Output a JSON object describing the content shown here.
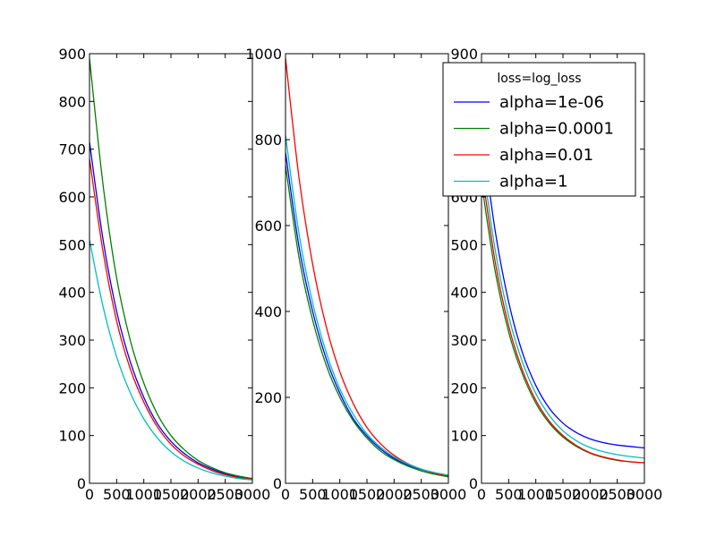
{
  "figure": {
    "background": "#ffffff"
  },
  "chart_data": [
    {
      "type": "line",
      "title": "",
      "xlabel": "",
      "ylabel": "",
      "xlim": [
        0,
        3000
      ],
      "ylim": [
        0,
        900
      ],
      "xticks": [
        "0",
        "500",
        "1000",
        "1500",
        "2000",
        "2500",
        "3000"
      ],
      "yticks": [
        "0",
        "100",
        "200",
        "300",
        "400",
        "500",
        "600",
        "700",
        "800",
        "900"
      ],
      "xtick_values": [
        0,
        500,
        1000,
        1500,
        2000,
        2500,
        3000
      ],
      "ytick_values": [
        0,
        100,
        200,
        300,
        400,
        500,
        600,
        700,
        800,
        900
      ],
      "grid": false,
      "series": [
        {
          "name": "alpha=1e-06",
          "color": "#0000ff",
          "x": [
            0,
            250,
            500,
            750,
            1000,
            1250,
            1500,
            1750,
            2000,
            2250,
            2500,
            2750,
            3000
          ],
          "y": [
            715,
            510,
            360,
            255,
            180,
            125,
            88,
            62,
            43,
            30,
            20,
            13,
            8
          ]
        },
        {
          "name": "alpha=0.0001",
          "color": "#008000",
          "x": [
            0,
            250,
            500,
            750,
            1000,
            1250,
            1500,
            1750,
            2000,
            2250,
            2500,
            2750,
            3000
          ],
          "y": [
            890,
            625,
            430,
            300,
            210,
            145,
            100,
            70,
            48,
            33,
            22,
            15,
            10
          ]
        },
        {
          "name": "alpha=0.01",
          "color": "#ff0000",
          "x": [
            0,
            250,
            500,
            750,
            1000,
            1250,
            1500,
            1750,
            2000,
            2250,
            2500,
            2750,
            3000
          ],
          "y": [
            680,
            485,
            340,
            240,
            170,
            118,
            82,
            57,
            40,
            27,
            18,
            12,
            8
          ]
        },
        {
          "name": "alpha=1",
          "color": "#00bfbf",
          "x": [
            0,
            250,
            500,
            750,
            1000,
            1250,
            1500,
            1750,
            2000,
            2250,
            2500,
            2750,
            3000
          ],
          "y": [
            510,
            370,
            265,
            190,
            135,
            95,
            66,
            46,
            32,
            22,
            15,
            10,
            7
          ]
        }
      ]
    },
    {
      "type": "line",
      "title": "",
      "xlabel": "",
      "ylabel": "",
      "xlim": [
        0,
        3000
      ],
      "ylim": [
        0,
        1000
      ],
      "xticks": [
        "0",
        "500",
        "1000",
        "1500",
        "2000",
        "2500",
        "3000"
      ],
      "yticks": [
        "0",
        "200",
        "400",
        "600",
        "800",
        "1000"
      ],
      "xtick_values": [
        0,
        500,
        1000,
        1500,
        2000,
        2500,
        3000
      ],
      "ytick_values": [
        0,
        200,
        400,
        600,
        800,
        1000
      ],
      "grid": false,
      "series": [
        {
          "name": "alpha=1e-06",
          "color": "#0000ff",
          "x": [
            0,
            250,
            500,
            750,
            1000,
            1250,
            1500,
            1750,
            2000,
            2250,
            2500,
            2750,
            3000
          ],
          "y": [
            770,
            550,
            400,
            290,
            210,
            150,
            110,
            80,
            58,
            43,
            32,
            24,
            18
          ]
        },
        {
          "name": "alpha=0.0001",
          "color": "#008000",
          "x": [
            0,
            250,
            500,
            750,
            1000,
            1250,
            1500,
            1750,
            2000,
            2250,
            2500,
            2750,
            3000
          ],
          "y": [
            740,
            525,
            380,
            275,
            200,
            145,
            105,
            75,
            55,
            40,
            29,
            21,
            15
          ]
        },
        {
          "name": "alpha=0.01",
          "color": "#ff0000",
          "x": [
            0,
            250,
            500,
            750,
            1000,
            1250,
            1500,
            1750,
            2000,
            2250,
            2500,
            2750,
            3000
          ],
          "y": [
            990,
            710,
            510,
            365,
            260,
            185,
            130,
            92,
            65,
            46,
            33,
            23,
            17
          ]
        },
        {
          "name": "alpha=1",
          "color": "#00bfbf",
          "x": [
            0,
            250,
            500,
            750,
            1000,
            1250,
            1500,
            1750,
            2000,
            2250,
            2500,
            2750,
            3000
          ],
          "y": [
            810,
            580,
            420,
            305,
            220,
            160,
            115,
            84,
            61,
            45,
            33,
            25,
            19
          ]
        }
      ]
    },
    {
      "type": "line",
      "title": "",
      "xlabel": "",
      "ylabel": "",
      "xlim": [
        0,
        3000
      ],
      "ylim": [
        0,
        900
      ],
      "xticks": [
        "0",
        "500",
        "1000",
        "1500",
        "2000",
        "2500",
        "3000"
      ],
      "yticks": [
        "0",
        "100",
        "200",
        "300",
        "400",
        "500",
        "600",
        "700",
        "800",
        "900"
      ],
      "xtick_values": [
        0,
        500,
        1000,
        1500,
        2000,
        2500,
        3000
      ],
      "ytick_values": [
        0,
        100,
        200,
        300,
        400,
        500,
        600,
        700,
        800,
        900
      ],
      "grid": false,
      "legend": {
        "title": "loss=log_loss",
        "placement": "upper right",
        "entries": [
          "alpha=1e-06",
          "alpha=0.0001",
          "alpha=0.01",
          "alpha=1"
        ]
      },
      "series": [
        {
          "name": "alpha=1e-06",
          "color": "#0000ff",
          "x": [
            0,
            250,
            500,
            750,
            1000,
            1250,
            1500,
            1750,
            2000,
            2250,
            2500,
            2750,
            3000
          ],
          "y": [
            740,
            530,
            380,
            275,
            205,
            157,
            126,
            106,
            93,
            85,
            80,
            77,
            74
          ]
        },
        {
          "name": "alpha=0.0001",
          "color": "#008000",
          "x": [
            0,
            250,
            500,
            750,
            1000,
            1250,
            1500,
            1750,
            2000,
            2250,
            2500,
            2750,
            3000
          ],
          "y": [
            630,
            445,
            317,
            230,
            168,
            126,
            97,
            77,
            63,
            54,
            48,
            45,
            43
          ]
        },
        {
          "name": "alpha=0.01",
          "color": "#ff0000",
          "x": [
            0,
            250,
            500,
            750,
            1000,
            1250,
            1500,
            1750,
            2000,
            2250,
            2500,
            2750,
            3000
          ],
          "y": [
            660,
            465,
            330,
            238,
            174,
            130,
            100,
            79,
            64,
            55,
            49,
            45,
            43
          ]
        },
        {
          "name": "alpha=1",
          "color": "#00bfbf",
          "x": [
            0,
            250,
            500,
            750,
            1000,
            1250,
            1500,
            1750,
            2000,
            2250,
            2500,
            2750,
            3000
          ],
          "y": [
            690,
            490,
            350,
            255,
            188,
            142,
            110,
            89,
            75,
            66,
            60,
            56,
            53
          ]
        }
      ]
    }
  ]
}
